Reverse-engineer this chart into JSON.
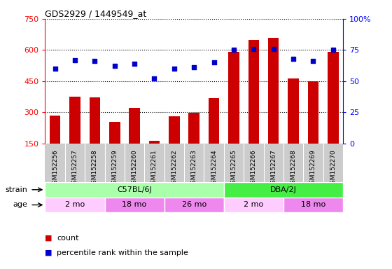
{
  "title": "GDS2929 / 1449549_at",
  "samples": [
    "GSM152256",
    "GSM152257",
    "GSM152258",
    "GSM152259",
    "GSM152260",
    "GSM152261",
    "GSM152262",
    "GSM152263",
    "GSM152264",
    "GSM152265",
    "GSM152266",
    "GSM152267",
    "GSM152268",
    "GSM152269",
    "GSM152270"
  ],
  "counts": [
    285,
    375,
    370,
    255,
    320,
    163,
    282,
    297,
    368,
    590,
    650,
    660,
    462,
    450,
    590
  ],
  "percentiles": [
    60,
    67,
    66,
    62,
    64,
    52,
    60,
    61,
    65,
    75,
    76,
    76,
    68,
    66,
    75
  ],
  "bar_baseline": 150,
  "ylim_left": [
    150,
    750
  ],
  "ylim_right": [
    0,
    100
  ],
  "yticks_left": [
    150,
    300,
    450,
    600,
    750
  ],
  "yticks_right": [
    0,
    25,
    50,
    75,
    100
  ],
  "bar_color": "#cc0000",
  "dot_color": "#0000cc",
  "strain_groups": [
    {
      "label": "C57BL/6J",
      "start": 0,
      "end": 9,
      "color": "#aaffaa"
    },
    {
      "label": "DBA/2J",
      "start": 9,
      "end": 15,
      "color": "#44ee44"
    }
  ],
  "age_groups": [
    {
      "label": "2 mo",
      "start": 0,
      "end": 3,
      "color": "#ffccff"
    },
    {
      "label": "18 mo",
      "start": 3,
      "end": 6,
      "color": "#ee88ee"
    },
    {
      "label": "26 mo",
      "start": 6,
      "end": 9,
      "color": "#ee88ee"
    },
    {
      "label": "2 mo",
      "start": 9,
      "end": 12,
      "color": "#ffccff"
    },
    {
      "label": "18 mo",
      "start": 12,
      "end": 15,
      "color": "#ee88ee"
    }
  ],
  "sample_label_bg": "#cccccc",
  "bg_color": "#ffffff",
  "legend_items": [
    {
      "color": "#cc0000",
      "label": "count"
    },
    {
      "color": "#0000cc",
      "label": "percentile rank within the sample"
    }
  ]
}
